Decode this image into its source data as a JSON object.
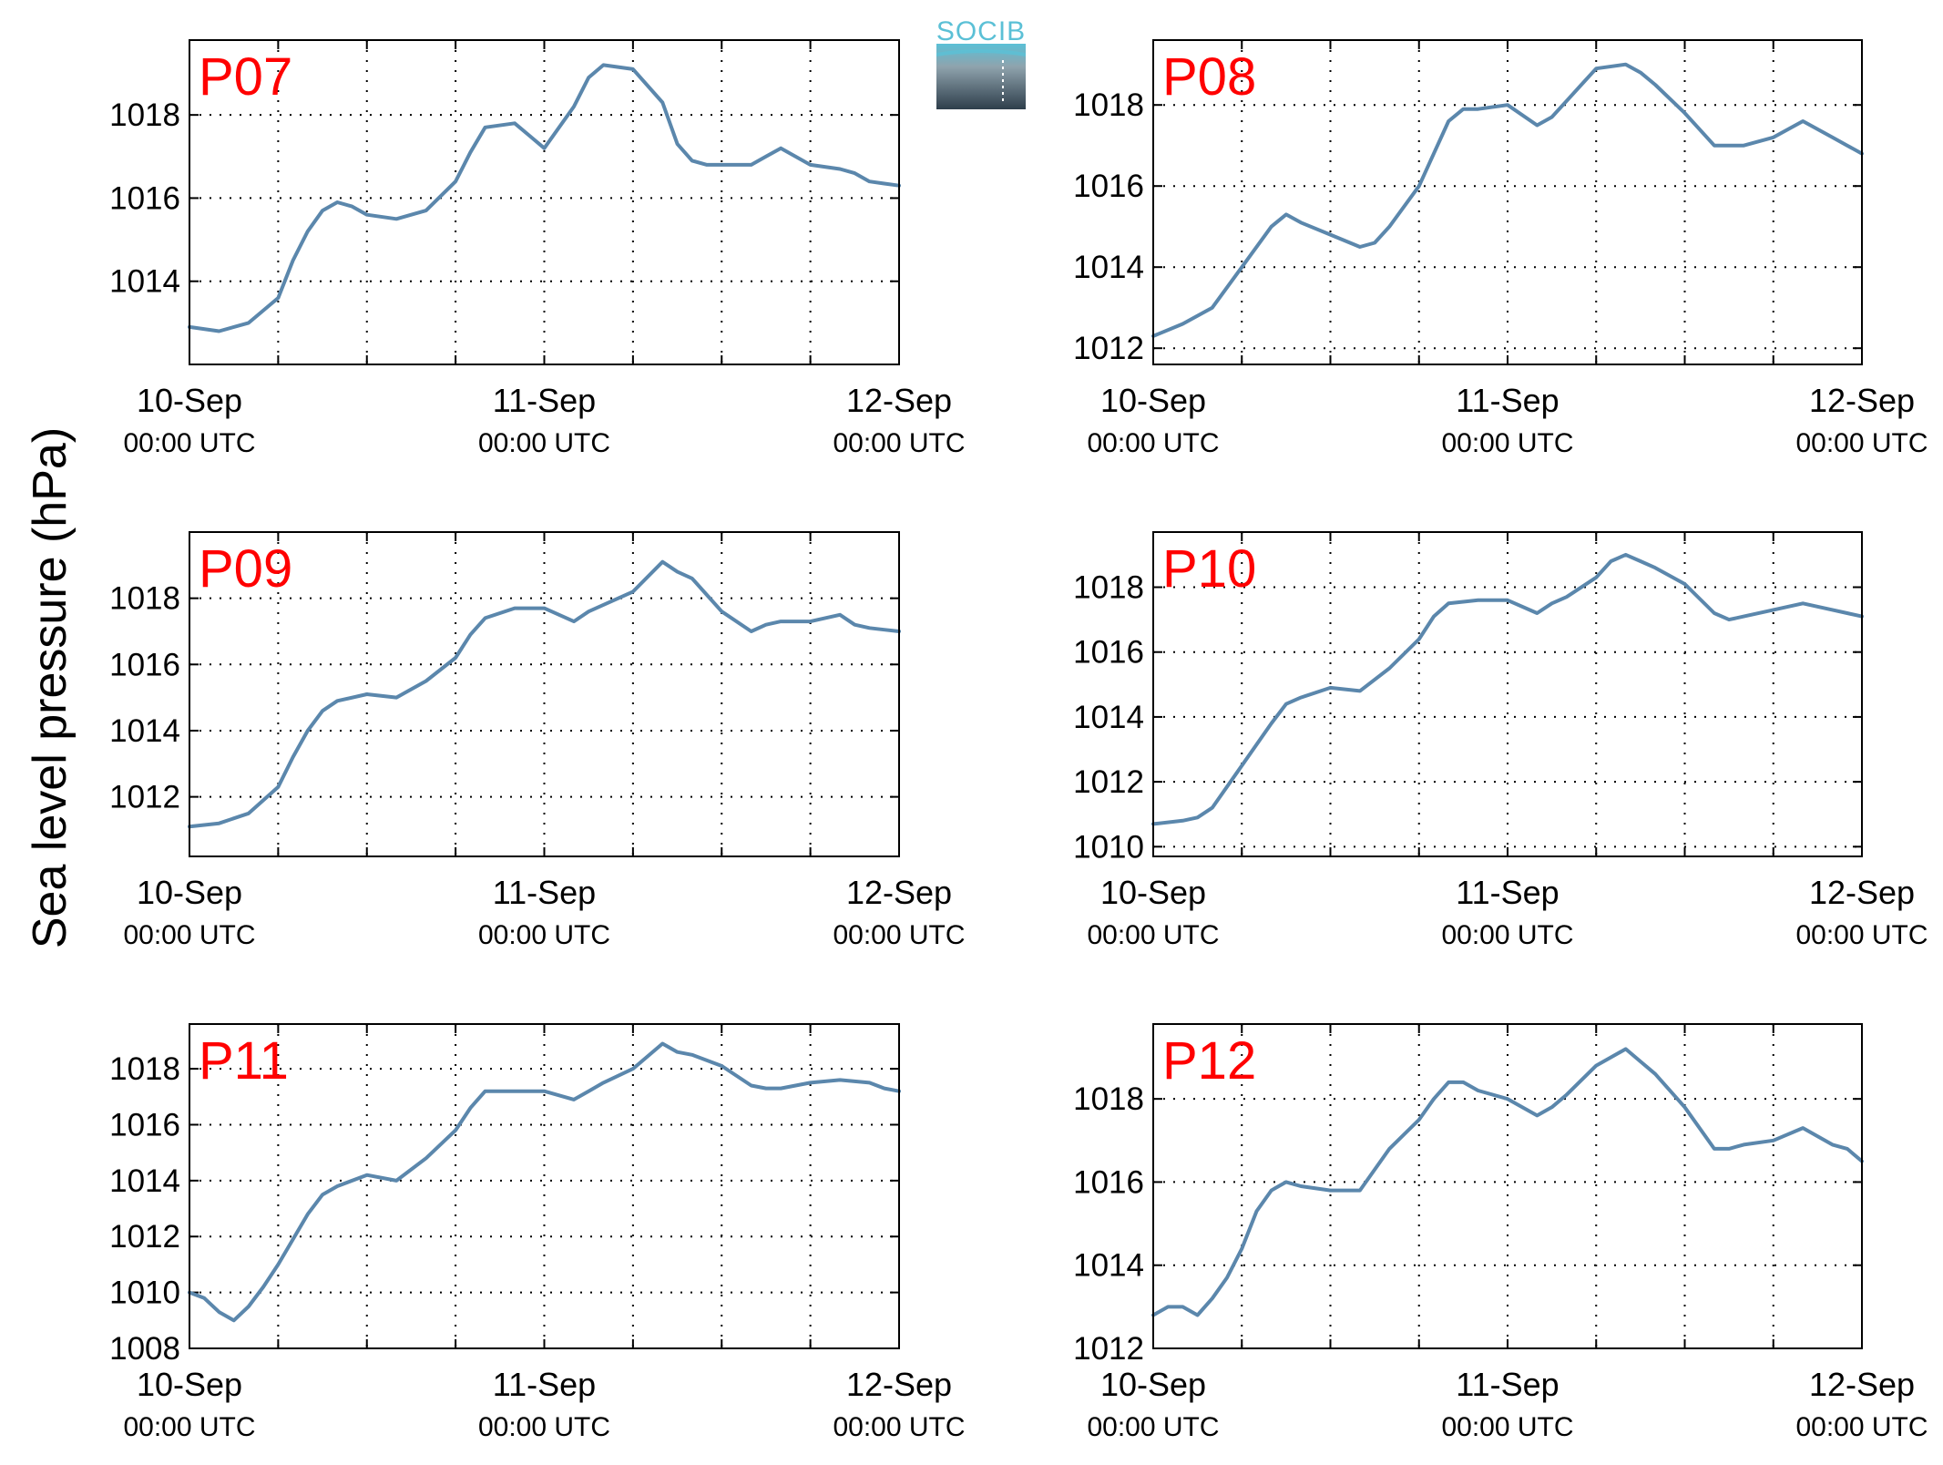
{
  "figure": {
    "ylabel": "Sea level pressure (hPa)",
    "logo_text": "SOCIB"
  },
  "x_ticks": [
    {
      "date": "10-Sep",
      "time": "00:00 UTC"
    },
    {
      "date": "11-Sep",
      "time": "00:00 UTC"
    },
    {
      "date": "12-Sep",
      "time": "00:00 UTC"
    }
  ],
  "colors": {
    "line": "#5b87ac",
    "panel_label": "#ff0000",
    "grid": "#000000",
    "logo_top": "#5bc0d6",
    "logo_bottom": "#2e3e4b"
  },
  "chart_data": [
    {
      "type": "line",
      "title": "P07",
      "x_unit": "hours since 10-Sep 00:00 UTC",
      "xlim": [
        0,
        48
      ],
      "ylim": [
        1012.0,
        1019.8
      ],
      "yticks": [
        1014,
        1016,
        1018
      ],
      "grid": true,
      "x": [
        0,
        2,
        4,
        6,
        7,
        8,
        9,
        10,
        11,
        12,
        14,
        16,
        18,
        19,
        20,
        22,
        23,
        24,
        26,
        27,
        28,
        30,
        32,
        33,
        34,
        35,
        36,
        38,
        39,
        40,
        42,
        44,
        45,
        46,
        47,
        48
      ],
      "y": [
        1012.9,
        1012.8,
        1013.0,
        1013.6,
        1014.5,
        1015.2,
        1015.7,
        1015.9,
        1015.8,
        1015.6,
        1015.5,
        1015.7,
        1016.4,
        1017.1,
        1017.7,
        1017.8,
        1017.5,
        1017.2,
        1018.2,
        1018.9,
        1019.2,
        1019.1,
        1018.3,
        1017.3,
        1016.9,
        1016.8,
        1016.8,
        1016.8,
        1017.0,
        1017.2,
        1016.8,
        1016.7,
        1016.6,
        1016.4,
        1016.35,
        1016.3
      ]
    },
    {
      "type": "line",
      "title": "P08",
      "x_unit": "hours since 10-Sep 00:00 UTC",
      "xlim": [
        0,
        48
      ],
      "ylim": [
        1011.6,
        1019.6
      ],
      "yticks": [
        1012,
        1014,
        1016,
        1018
      ],
      "grid": true,
      "x": [
        0,
        2,
        4,
        6,
        8,
        9,
        10,
        12,
        14,
        15,
        16,
        18,
        19,
        20,
        21,
        22,
        24,
        26,
        27,
        28,
        29,
        30,
        32,
        33,
        34,
        36,
        38,
        39,
        40,
        42,
        44,
        46,
        47,
        48
      ],
      "y": [
        1012.3,
        1012.6,
        1013.0,
        1014.0,
        1015.0,
        1015.3,
        1015.1,
        1014.8,
        1014.5,
        1014.6,
        1015.0,
        1016.0,
        1016.8,
        1017.6,
        1017.9,
        1017.9,
        1018.0,
        1017.5,
        1017.7,
        1018.1,
        1018.5,
        1018.9,
        1019.0,
        1018.8,
        1018.5,
        1017.8,
        1017.0,
        1017.0,
        1017.0,
        1017.2,
        1017.6,
        1017.2,
        1017.0,
        1016.8
      ]
    },
    {
      "type": "line",
      "title": "P09",
      "x_unit": "hours since 10-Sep 00:00 UTC",
      "xlim": [
        0,
        48
      ],
      "ylim": [
        1010.2,
        1020.0
      ],
      "yticks": [
        1012,
        1014,
        1016,
        1018
      ],
      "grid": true,
      "x": [
        0,
        2,
        4,
        6,
        7,
        8,
        9,
        10,
        12,
        14,
        16,
        18,
        19,
        20,
        22,
        24,
        26,
        27,
        28,
        30,
        32,
        33,
        34,
        35,
        36,
        38,
        39,
        40,
        42,
        44,
        45,
        46,
        47,
        48
      ],
      "y": [
        1011.1,
        1011.2,
        1011.5,
        1012.3,
        1013.2,
        1014.0,
        1014.6,
        1014.9,
        1015.1,
        1015.0,
        1015.5,
        1016.2,
        1016.9,
        1017.4,
        1017.7,
        1017.7,
        1017.3,
        1017.6,
        1017.8,
        1018.2,
        1019.1,
        1018.8,
        1018.6,
        1018.1,
        1017.6,
        1017.0,
        1017.2,
        1017.3,
        1017.3,
        1017.5,
        1017.2,
        1017.1,
        1017.05,
        1017.0
      ]
    },
    {
      "type": "line",
      "title": "P10",
      "x_unit": "hours since 10-Sep 00:00 UTC",
      "xlim": [
        0,
        48
      ],
      "ylim": [
        1009.7,
        1019.7
      ],
      "yticks": [
        1010,
        1012,
        1014,
        1016,
        1018
      ],
      "grid": true,
      "x": [
        0,
        2,
        3,
        4,
        6,
        8,
        9,
        10,
        12,
        14,
        16,
        18,
        19,
        20,
        22,
        24,
        26,
        27,
        28,
        30,
        31,
        32,
        33,
        34,
        36,
        38,
        39,
        40,
        42,
        44,
        46,
        47,
        48
      ],
      "y": [
        1010.7,
        1010.8,
        1010.9,
        1011.2,
        1012.5,
        1013.8,
        1014.4,
        1014.6,
        1014.9,
        1014.8,
        1015.5,
        1016.4,
        1017.1,
        1017.5,
        1017.6,
        1017.6,
        1017.2,
        1017.5,
        1017.7,
        1018.3,
        1018.8,
        1019.0,
        1018.8,
        1018.6,
        1018.1,
        1017.2,
        1017.0,
        1017.1,
        1017.3,
        1017.5,
        1017.3,
        1017.2,
        1017.1
      ]
    },
    {
      "type": "line",
      "title": "P11",
      "x_unit": "hours since 10-Sep 00:00 UTC",
      "xlim": [
        0,
        48
      ],
      "ylim": [
        1008.0,
        1019.6
      ],
      "yticks": [
        1008,
        1010,
        1012,
        1014,
        1016,
        1018
      ],
      "grid": true,
      "x": [
        0,
        1,
        2,
        3,
        4,
        5,
        6,
        8,
        9,
        10,
        12,
        14,
        16,
        18,
        19,
        20,
        22,
        24,
        26,
        27,
        28,
        30,
        32,
        33,
        34,
        36,
        38,
        39,
        40,
        42,
        44,
        46,
        47,
        48
      ],
      "y": [
        1010.0,
        1009.8,
        1009.3,
        1009.0,
        1009.5,
        1010.2,
        1011.0,
        1012.8,
        1013.5,
        1013.8,
        1014.2,
        1014.0,
        1014.8,
        1015.8,
        1016.6,
        1017.2,
        1017.2,
        1017.2,
        1016.9,
        1017.2,
        1017.5,
        1018.0,
        1018.9,
        1018.6,
        1018.5,
        1018.1,
        1017.4,
        1017.3,
        1017.3,
        1017.5,
        1017.6,
        1017.5,
        1017.3,
        1017.2
      ]
    },
    {
      "type": "line",
      "title": "P12",
      "x_unit": "hours since 10-Sep 00:00 UTC",
      "xlim": [
        0,
        48
      ],
      "ylim": [
        1012.0,
        1019.8
      ],
      "yticks": [
        1012,
        1014,
        1016,
        1018
      ],
      "grid": true,
      "x": [
        0,
        1,
        2,
        3,
        4,
        5,
        6,
        7,
        8,
        9,
        10,
        12,
        14,
        16,
        18,
        19,
        20,
        21,
        22,
        24,
        26,
        27,
        28,
        30,
        32,
        33,
        34,
        36,
        38,
        39,
        40,
        42,
        44,
        46,
        47,
        48
      ],
      "y": [
        1012.8,
        1013.0,
        1013.0,
        1012.8,
        1013.2,
        1013.7,
        1014.4,
        1015.3,
        1015.8,
        1016.0,
        1015.9,
        1015.8,
        1015.8,
        1016.8,
        1017.5,
        1018.0,
        1018.4,
        1018.4,
        1018.2,
        1018.0,
        1017.6,
        1017.8,
        1018.1,
        1018.8,
        1019.2,
        1018.9,
        1018.6,
        1017.8,
        1016.8,
        1016.8,
        1016.9,
        1017.0,
        1017.3,
        1016.9,
        1016.8,
        1016.5
      ]
    }
  ]
}
